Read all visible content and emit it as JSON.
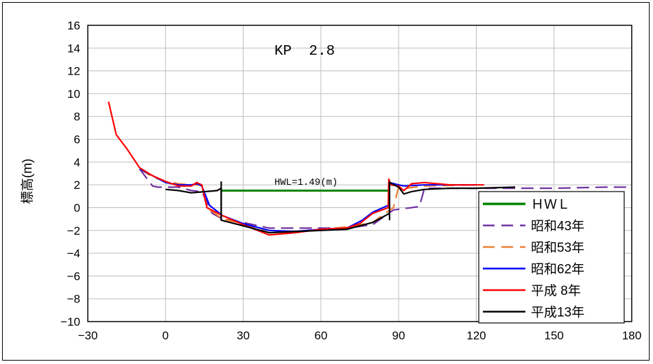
{
  "chart_data": {
    "type": "line",
    "title": "KP  2.8",
    "ylabel": "標高(m)",
    "xlabel": "",
    "xlim": [
      -30,
      180
    ],
    "ylim": [
      -10,
      16
    ],
    "x_ticks": [
      -30,
      0,
      30,
      60,
      90,
      120,
      150,
      180
    ],
    "y_ticks": [
      -10,
      -8,
      -6,
      -4,
      -2,
      0,
      2,
      4,
      6,
      8,
      10,
      12,
      14,
      16
    ],
    "grid": true,
    "legend_position": "bottom-right",
    "annotation": "HWL=1.49(m)",
    "series": [
      {
        "name": "ＨＷＬ",
        "color": "#008000",
        "dash": "solid",
        "points": [
          [
            21.5,
            1.49
          ],
          [
            86.5,
            1.49
          ]
        ]
      },
      {
        "name": "昭和43年",
        "color": "#7030A0",
        "dash": "dashed",
        "points": [
          [
            -10,
            3.4
          ],
          [
            -5,
            1.9
          ],
          [
            -3,
            1.8
          ],
          [
            5,
            1.8
          ],
          [
            10,
            1.5
          ],
          [
            14,
            1.4
          ],
          [
            18,
            -0.5
          ],
          [
            22,
            -1.0
          ],
          [
            30,
            -1.3
          ],
          [
            40,
            -1.8
          ],
          [
            50,
            -1.8
          ],
          [
            60,
            -1.8
          ],
          [
            70,
            -1.8
          ],
          [
            80,
            -1.5
          ],
          [
            88,
            -0.2
          ],
          [
            95,
            0.0
          ],
          [
            98,
            0.1
          ],
          [
            100,
            1.7
          ],
          [
            110,
            1.7
          ],
          [
            130,
            1.7
          ],
          [
            150,
            1.7
          ],
          [
            170,
            1.8
          ],
          [
            180,
            1.8
          ]
        ]
      },
      {
        "name": "昭和53年",
        "color": "#ED7D31",
        "dash": "dashed",
        "points": [
          [
            -10,
            3.4
          ],
          [
            -5,
            2.7
          ],
          [
            0,
            2.3
          ],
          [
            5,
            2.1
          ],
          [
            10,
            2.0
          ],
          [
            14,
            2.0
          ],
          [
            16,
            0.0
          ],
          [
            22,
            -1.0
          ],
          [
            30,
            -1.4
          ],
          [
            40,
            -2.2
          ],
          [
            50,
            -2.1
          ],
          [
            60,
            -1.9
          ],
          [
            70,
            -1.7
          ],
          [
            80,
            -1.3
          ],
          [
            86,
            -0.3
          ],
          [
            88,
            0.0
          ],
          [
            90,
            1.8
          ],
          [
            93,
            1.7
          ],
          [
            100,
            1.9
          ],
          [
            120,
            2.0
          ]
        ]
      },
      {
        "name": "昭和62年",
        "color": "#0000FF",
        "dash": "solid",
        "points": [
          [
            -10,
            3.4
          ],
          [
            -5,
            2.8
          ],
          [
            0,
            2.2
          ],
          [
            5,
            2.0
          ],
          [
            10,
            2.0
          ],
          [
            12,
            2.1
          ],
          [
            14,
            1.9
          ],
          [
            17,
            0.2
          ],
          [
            22,
            -0.7
          ],
          [
            30,
            -1.4
          ],
          [
            40,
            -2.0
          ],
          [
            50,
            -2.1
          ],
          [
            60,
            -1.9
          ],
          [
            70,
            -1.8
          ],
          [
            76,
            -1.1
          ],
          [
            80,
            -0.4
          ],
          [
            86,
            0.2
          ],
          [
            86.5,
            2.2
          ],
          [
            90,
            2.0
          ],
          [
            92,
            1.9
          ],
          [
            100,
            2.0
          ],
          [
            120,
            2.0
          ]
        ]
      },
      {
        "name": "平成 8年",
        "color": "#FF0000",
        "dash": "solid",
        "points": [
          [
            -22,
            9.3
          ],
          [
            -19,
            6.4
          ],
          [
            -15,
            5.2
          ],
          [
            -10,
            3.5
          ],
          [
            -5,
            2.8
          ],
          [
            0,
            2.3
          ],
          [
            5,
            1.9
          ],
          [
            10,
            1.9
          ],
          [
            12,
            2.2
          ],
          [
            14,
            2.0
          ],
          [
            16,
            0.0
          ],
          [
            22,
            -0.7
          ],
          [
            30,
            -1.5
          ],
          [
            40,
            -2.4
          ],
          [
            50,
            -2.2
          ],
          [
            60,
            -1.9
          ],
          [
            70,
            -1.8
          ],
          [
            75,
            -1.4
          ],
          [
            80,
            -0.5
          ],
          [
            86,
            0.0
          ],
          [
            86.2,
            2.5
          ],
          [
            87,
            2.0
          ],
          [
            90,
            1.9
          ],
          [
            92,
            1.5
          ],
          [
            95,
            2.1
          ],
          [
            100,
            2.2
          ],
          [
            110,
            2.0
          ],
          [
            123,
            2.0
          ]
        ]
      },
      {
        "name": "平成13年",
        "color": "#000000",
        "dash": "solid",
        "points": [
          [
            0,
            1.6
          ],
          [
            5,
            1.5
          ],
          [
            10,
            1.3
          ],
          [
            20,
            1.5
          ],
          [
            21.5,
            1.7
          ],
          [
            21.5,
            -1.1
          ],
          [
            30,
            -1.6
          ],
          [
            40,
            -2.2
          ],
          [
            50,
            -2.1
          ],
          [
            60,
            -2.0
          ],
          [
            70,
            -1.9
          ],
          [
            80,
            -1.3
          ],
          [
            86.5,
            -0.5
          ],
          [
            86.5,
            2.2
          ],
          [
            90,
            1.8
          ],
          [
            92,
            1.2
          ],
          [
            95,
            1.4
          ],
          [
            100,
            1.6
          ],
          [
            110,
            1.7
          ],
          [
            120,
            1.7
          ],
          [
            135,
            1.8
          ]
        ]
      }
    ]
  }
}
